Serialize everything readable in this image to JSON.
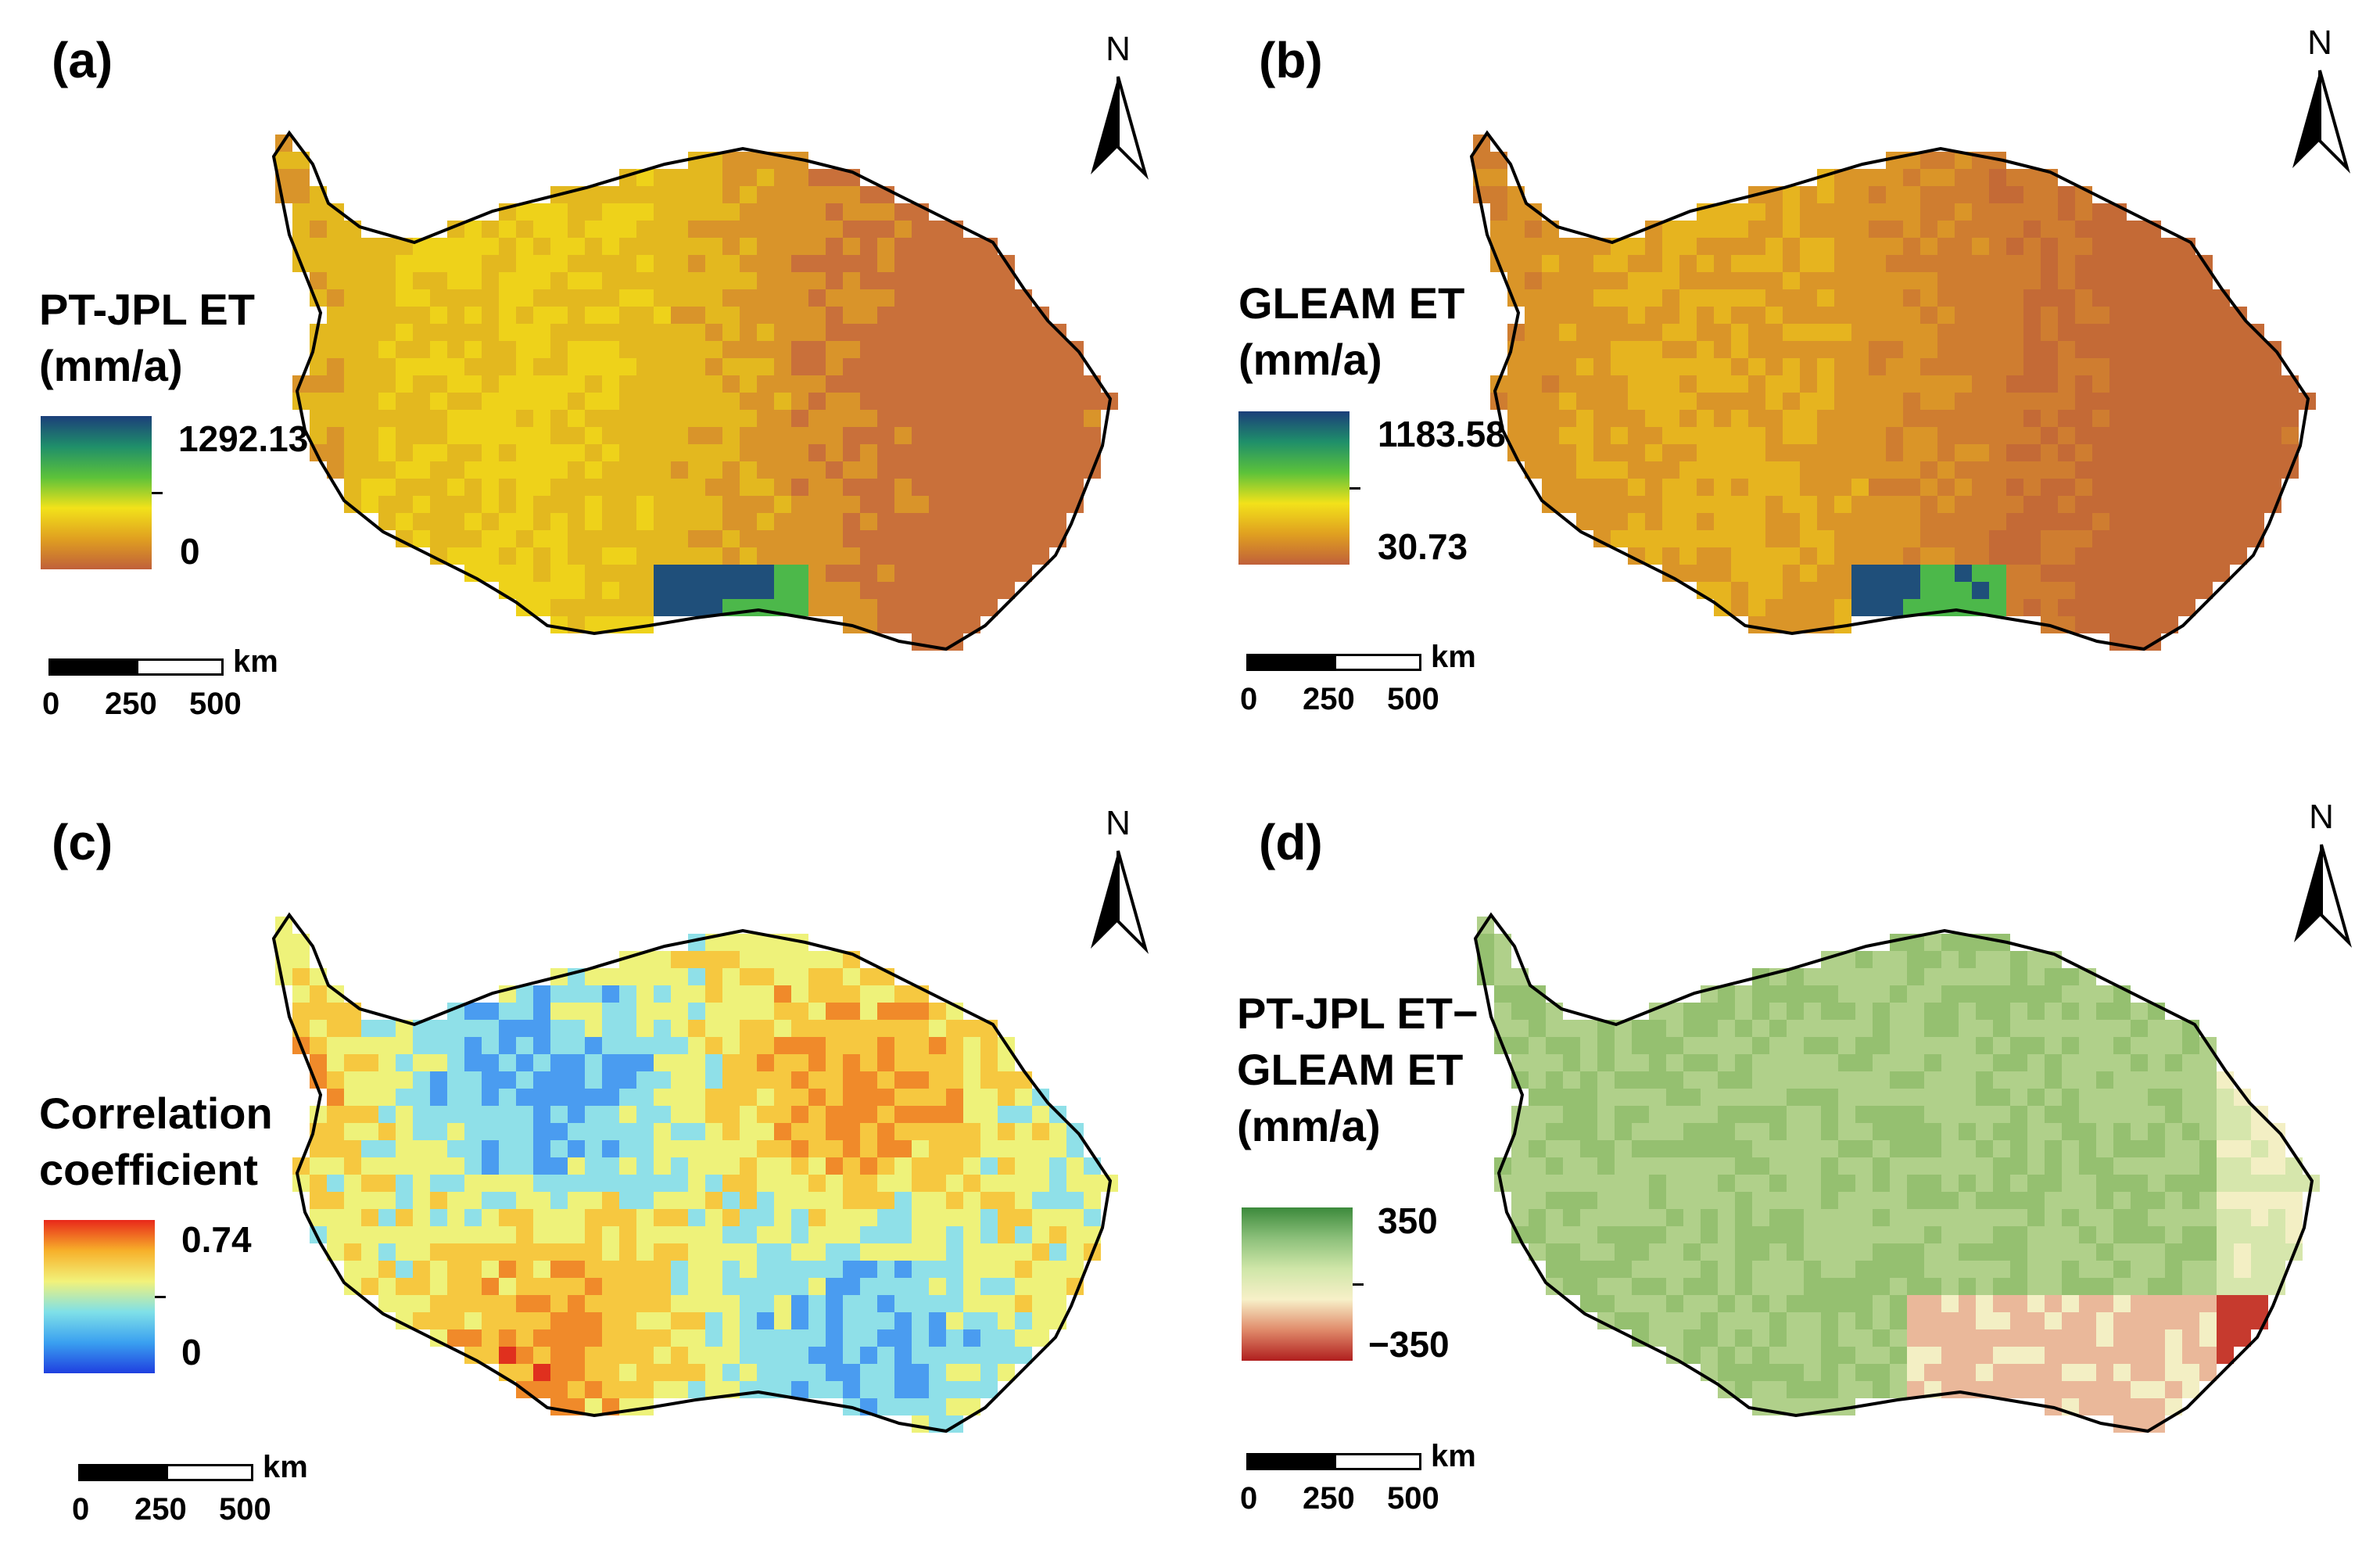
{
  "panels": [
    {
      "label": "(a)",
      "legend_title": "PT-JPL ET\n(mm/a)",
      "north": "N",
      "colorbar": {
        "max": "1292.13",
        "min": "0",
        "stops": [
          "#c0603a",
          "#e0a020",
          "#f2e21a",
          "#5cc23a",
          "#1f8f6a",
          "#1c3f7a"
        ]
      },
      "scale": {
        "unit": "km",
        "ticks": [
          "0",
          "250",
          "500"
        ]
      },
      "map_palette": [
        "#c9703a",
        "#d9942a",
        "#e3b81f",
        "#eed21a",
        "#b6d82a",
        "#4cb84a",
        "#1f4f7a"
      ]
    },
    {
      "label": "(b)",
      "legend_title": "GLEAM ET\n(mm/a)",
      "north": "N",
      "colorbar": {
        "max": "1183.58",
        "min": "30.73",
        "stops": [
          "#c0603a",
          "#e0a020",
          "#f2e21a",
          "#5cc23a",
          "#1f8f6a",
          "#1c3f7a"
        ]
      },
      "scale": {
        "unit": "km",
        "ticks": [
          "0",
          "250",
          "500"
        ]
      },
      "map_palette": [
        "#c46a36",
        "#cf7d30",
        "#da9528",
        "#e6b41f",
        "#f0d61a",
        "#4cb84a",
        "#1f4f7a"
      ]
    },
    {
      "label": "(c)",
      "legend_title": "Correlation\ncoefficient",
      "north": "N",
      "colorbar": {
        "max": "0.74",
        "min": "0",
        "stops": [
          "#1f3fe0",
          "#3aa0f0",
          "#7fe0e8",
          "#f2f27a",
          "#f7b02a",
          "#e8281a"
        ]
      },
      "scale": {
        "unit": "km",
        "ticks": [
          "0",
          "250",
          "500"
        ]
      },
      "map_palette": [
        "#2a4fd8",
        "#4a9cf0",
        "#8fe0e8",
        "#eef27a",
        "#f6c840",
        "#f08a2a",
        "#e0301e"
      ]
    },
    {
      "label": "(d)",
      "legend_title": "PT-JPL ET−\nGLEAM ET\n(mm/a)",
      "north": "N",
      "colorbar": {
        "max": "350",
        "min": "−350",
        "stops": [
          "#b01e1e",
          "#e08a6a",
          "#f7f0c8",
          "#cfe6a8",
          "#8cc07a",
          "#3c8a3c"
        ]
      },
      "scale": {
        "unit": "km",
        "ticks": [
          "0",
          "250",
          "500"
        ]
      },
      "map_palette": [
        "#7ab05a",
        "#95c070",
        "#b0d08a",
        "#d6e6ac",
        "#f3efc4",
        "#eab89a",
        "#c63a2e"
      ]
    }
  ]
}
